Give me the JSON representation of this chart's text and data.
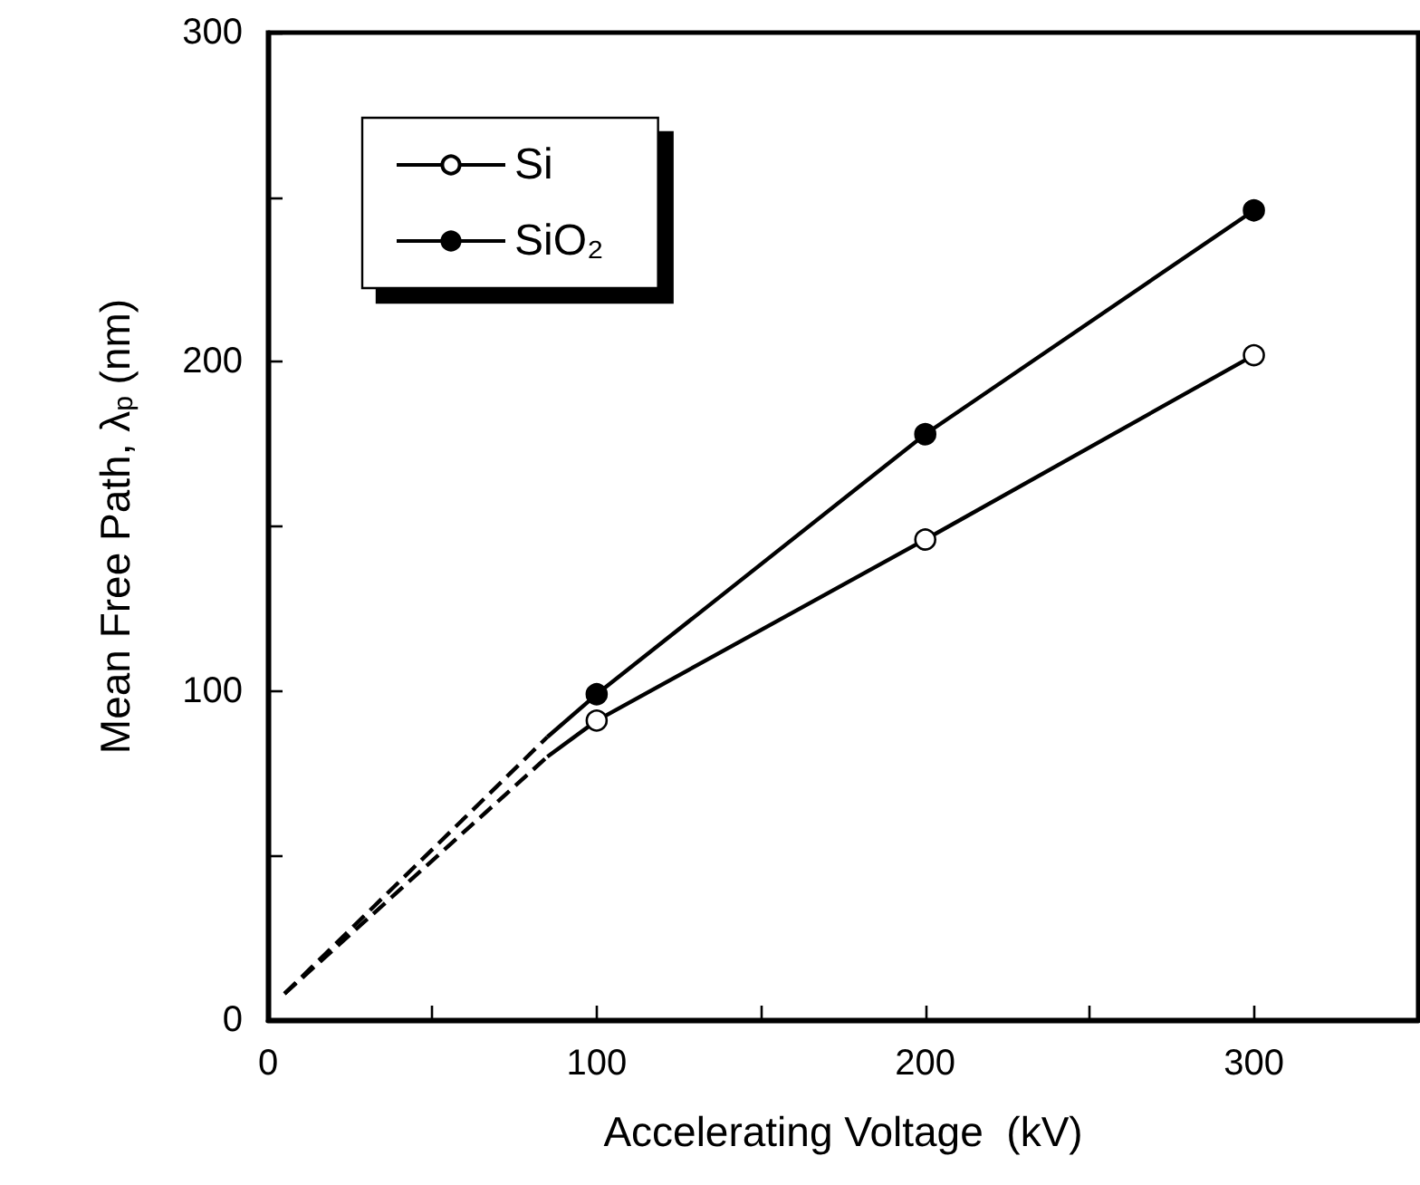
{
  "chart_data": {
    "type": "line",
    "xlabel": "Accelerating Voltage  (kV)",
    "ylabel": "Mean Free Path, λ$_{p}$ (nm)",
    "series": [
      {
        "name": "Si",
        "color": "#000000",
        "x": [
          100,
          200,
          300
        ],
        "values": [
          91,
          146,
          202
        ],
        "marker": "circle",
        "colors": [
          "#ffffff",
          "#ffffff",
          "#ffffff"
        ]
      },
      {
        "name": "SiO₂",
        "color": "#000000",
        "x": [
          100,
          200,
          300
        ],
        "values": [
          99,
          178,
          246
        ],
        "marker": "circle"
      },
      {
        "color": "#000000",
        "x": [
          85,
          100
        ],
        "values": [
          80,
          91
        ],
        "marker": "none"
      },
      {
        "color": "#000000",
        "x": [
          85,
          100
        ],
        "values": [
          86,
          99
        ],
        "marker": "none"
      },
      {
        "color": "#000000",
        "x": [
          5,
          85
        ],
        "values": [
          8,
          80
        ],
        "marker": "none",
        "line_style": "dashed"
      },
      {
        "color": "#000000",
        "x": [
          5,
          85
        ],
        "values": [
          8,
          86
        ],
        "marker": "none",
        "line_style": "dashed"
      }
    ],
    "xlim": [
      0,
      350
    ],
    "xticks": [
      0,
      {
        "value": 50,
        "label": null
      },
      100,
      {
        "value": 150,
        "label": null
      },
      200,
      {
        "value": 250,
        "label": null
      },
      300
    ],
    "ylim": [
      0,
      300
    ],
    "yticks": [
      0,
      {
        "value": 50,
        "label": null
      },
      100,
      {
        "value": 150,
        "label": null
      },
      200,
      {
        "value": 250,
        "label": null
      },
      300
    ],
    "grid": false,
    "legend": "top left"
  }
}
